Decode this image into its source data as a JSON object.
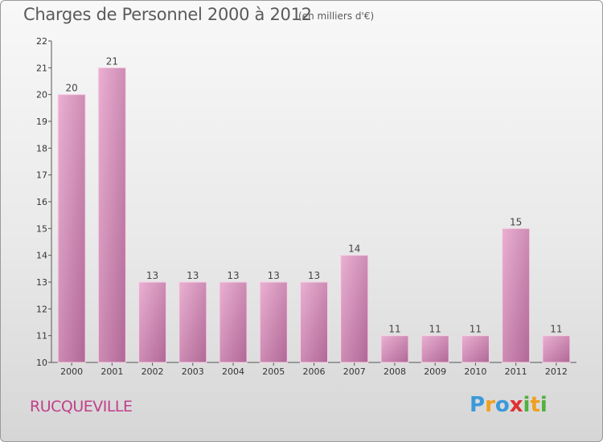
{
  "header": {
    "title": "Charges de Personnel 2000 à 2012",
    "subtitle": "(en milliers d'€)"
  },
  "footer": {
    "town": "RUCQUEVILLE",
    "logo_letters": [
      "P",
      "r",
      "o",
      "x",
      "i",
      "t",
      "i"
    ],
    "logo_colors": [
      "#3a9ad9",
      "#f0a020",
      "#3a9ad9",
      "#e03030",
      "#50b040",
      "#f0a020",
      "#50b040"
    ]
  },
  "colors": {
    "bar": "#d88ab8",
    "bar_light": "#e6a8cc",
    "bar_dark": "#b0689a",
    "town": "#c0408a"
  },
  "chart_data": {
    "type": "bar",
    "title": "Charges de Personnel 2000 à 2012",
    "subtitle": "(en milliers d'€)",
    "categories": [
      "2000",
      "2001",
      "2002",
      "2003",
      "2004",
      "2005",
      "2006",
      "2007",
      "2008",
      "2009",
      "2010",
      "2011",
      "2012"
    ],
    "values": [
      20,
      21,
      13,
      13,
      13,
      13,
      13,
      14,
      11,
      11,
      11,
      15,
      11
    ],
    "yticks": [
      10,
      11,
      12,
      13,
      14,
      15,
      16,
      17,
      18,
      19,
      20,
      21,
      22
    ],
    "ylim": [
      10,
      22
    ],
    "grid": false
  }
}
